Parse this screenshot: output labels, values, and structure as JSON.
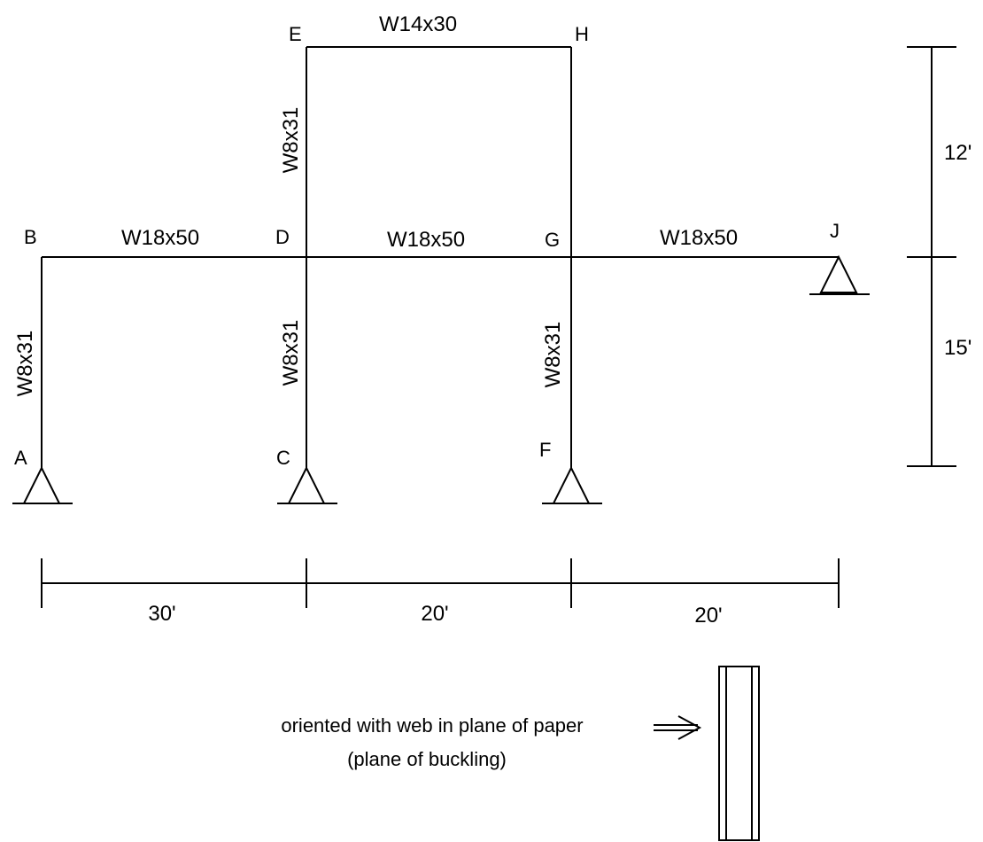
{
  "nodes": {
    "A": "A",
    "B": "B",
    "C": "C",
    "D": "D",
    "E": "E",
    "F": "F",
    "G": "G",
    "H": "H",
    "J": "J"
  },
  "members": {
    "ab": "W8x31",
    "cd": "W8x31",
    "de": "W8x31",
    "fg": "W8x31",
    "bd": "W18x50",
    "dg": "W18x50",
    "gj": "W18x50",
    "eh": "W14x30"
  },
  "dimensions": {
    "horizontal": [
      "30'",
      "20'",
      "20'"
    ],
    "vertical": [
      "12'",
      "15'"
    ]
  },
  "note": {
    "line1": "oriented with web in plane of paper",
    "line2": "(plane of buckling)",
    "arrow": "—>"
  },
  "colors": {
    "stroke": "#000000",
    "background": "#ffffff"
  }
}
